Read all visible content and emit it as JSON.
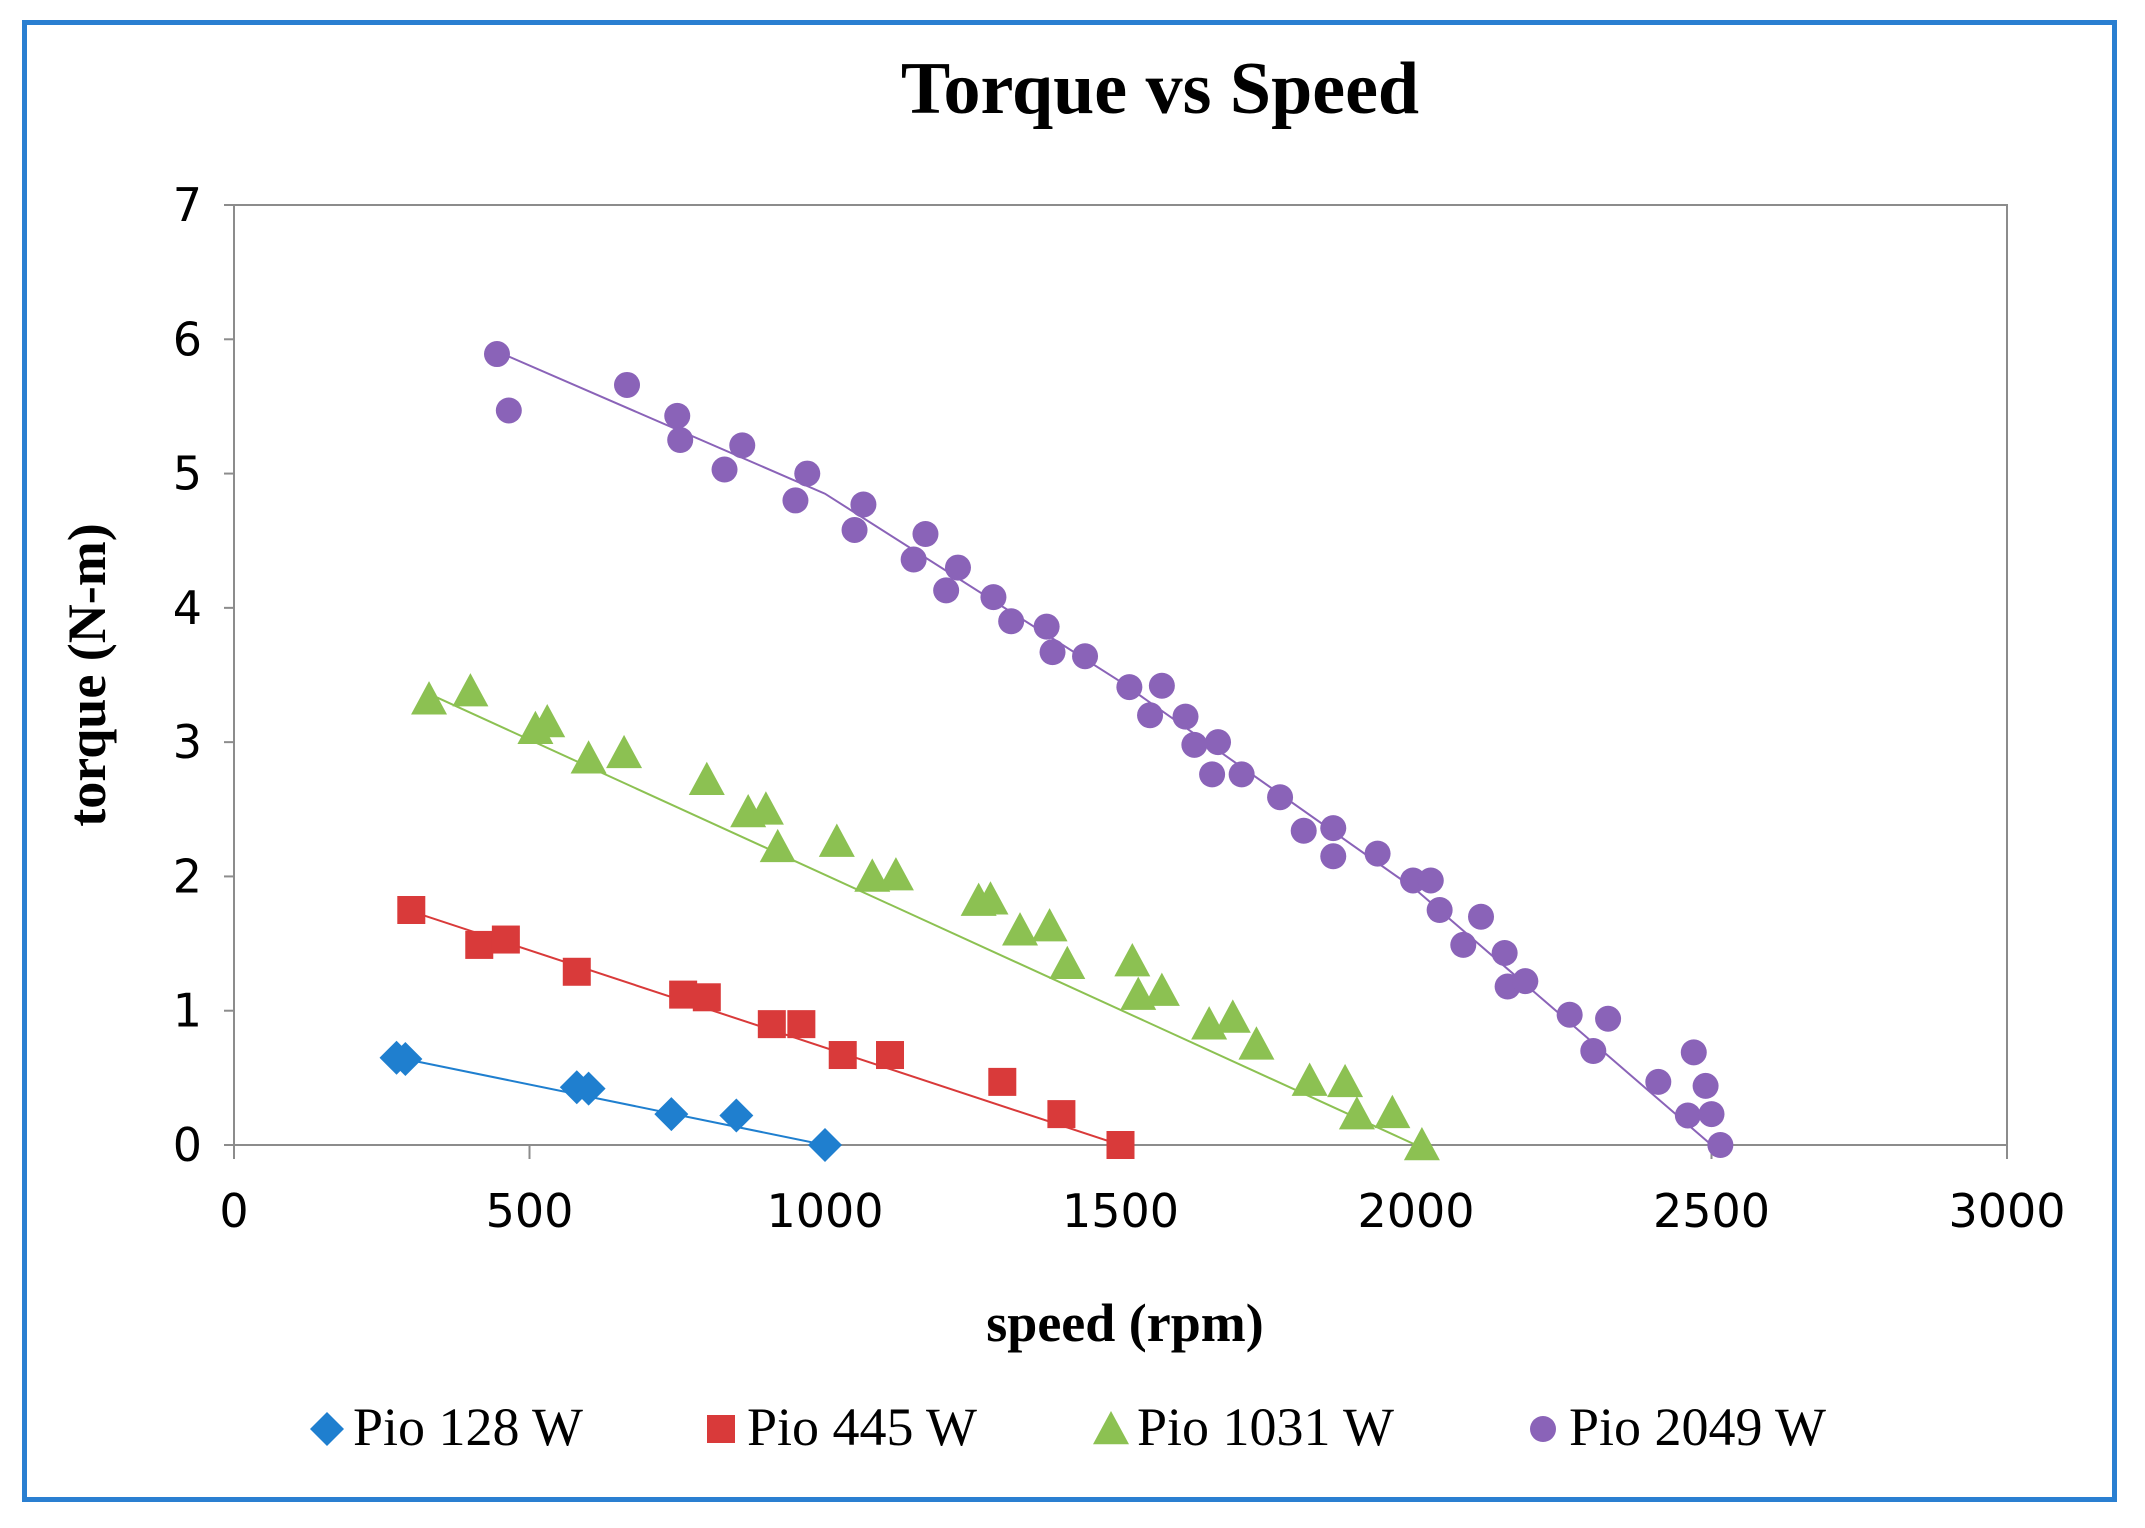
{
  "chart_data": {
    "type": "scatter",
    "title": "Torque vs Speed",
    "xlabel": "speed (rpm)",
    "ylabel": "torque (N-m)",
    "xlim": [
      0,
      3000
    ],
    "ylim": [
      0,
      7
    ],
    "xticks": [
      "0",
      "500",
      "1000",
      "1500",
      "2000",
      "2500",
      "3000"
    ],
    "yticks": [
      "0",
      "1",
      "2",
      "3",
      "4",
      "5",
      "6",
      "7"
    ],
    "grid": false,
    "legend_position": "bottom",
    "series": [
      {
        "name": "Pio 128 W",
        "marker": "diamond",
        "color": "#1f7fcf",
        "trendline": [
          [
            290,
            0.64
          ],
          [
            1000,
            0
          ]
        ],
        "points": [
          [
            275,
            0.65
          ],
          [
            290,
            0.64
          ],
          [
            580,
            0.43
          ],
          [
            600,
            0.42
          ],
          [
            740,
            0.23
          ],
          [
            850,
            0.22
          ],
          [
            1000,
            0.0
          ]
        ]
      },
      {
        "name": "Pio 445 W",
        "marker": "square",
        "color": "#d93a3a",
        "trendline": [
          [
            300,
            1.74
          ],
          [
            1500,
            0
          ]
        ],
        "points": [
          [
            300,
            1.75
          ],
          [
            415,
            1.49
          ],
          [
            460,
            1.53
          ],
          [
            580,
            1.29
          ],
          [
            760,
            1.12
          ],
          [
            800,
            1.1
          ],
          [
            910,
            0.9
          ],
          [
            960,
            0.9
          ],
          [
            1030,
            0.67
          ],
          [
            1110,
            0.67
          ],
          [
            1300,
            0.47
          ],
          [
            1400,
            0.23
          ],
          [
            1500,
            0.0
          ]
        ]
      },
      {
        "name": "Pio 1031 W",
        "marker": "triangle",
        "color": "#8cc152",
        "trendline": [
          [
            330,
            3.36
          ],
          [
            2000,
            0
          ]
        ],
        "points": [
          [
            330,
            3.32
          ],
          [
            400,
            3.38
          ],
          [
            510,
            3.1
          ],
          [
            530,
            3.15
          ],
          [
            600,
            2.88
          ],
          [
            660,
            2.92
          ],
          [
            800,
            2.72
          ],
          [
            870,
            2.48
          ],
          [
            900,
            2.5
          ],
          [
            920,
            2.22
          ],
          [
            1020,
            2.26
          ],
          [
            1080,
            2.0
          ],
          [
            1120,
            2.01
          ],
          [
            1260,
            1.82
          ],
          [
            1280,
            1.83
          ],
          [
            1330,
            1.6
          ],
          [
            1380,
            1.63
          ],
          [
            1410,
            1.35
          ],
          [
            1520,
            1.37
          ],
          [
            1530,
            1.12
          ],
          [
            1570,
            1.15
          ],
          [
            1650,
            0.9
          ],
          [
            1690,
            0.95
          ],
          [
            1730,
            0.75
          ],
          [
            1820,
            0.48
          ],
          [
            1880,
            0.47
          ],
          [
            1900,
            0.23
          ],
          [
            1960,
            0.24
          ],
          [
            2010,
            0.0
          ]
        ]
      },
      {
        "name": "Pio 2049 W",
        "marker": "circle",
        "color": "#8a63b8",
        "trendline": [
          [
            450,
            5.9
          ],
          [
            1000,
            4.85
          ],
          [
            1500,
            3.45
          ],
          [
            2000,
            1.9
          ],
          [
            2500,
            0
          ]
        ],
        "points": [
          [
            445,
            5.89
          ],
          [
            465,
            5.47
          ],
          [
            665,
            5.66
          ],
          [
            750,
            5.43
          ],
          [
            755,
            5.25
          ],
          [
            830,
            5.03
          ],
          [
            860,
            5.21
          ],
          [
            950,
            4.8
          ],
          [
            970,
            5.0
          ],
          [
            1050,
            4.58
          ],
          [
            1065,
            4.77
          ],
          [
            1150,
            4.36
          ],
          [
            1170,
            4.55
          ],
          [
            1205,
            4.13
          ],
          [
            1225,
            4.3
          ],
          [
            1285,
            4.08
          ],
          [
            1315,
            3.9
          ],
          [
            1375,
            3.86
          ],
          [
            1385,
            3.67
          ],
          [
            1440,
            3.64
          ],
          [
            1515,
            3.41
          ],
          [
            1550,
            3.2
          ],
          [
            1570,
            3.42
          ],
          [
            1610,
            3.19
          ],
          [
            1625,
            2.98
          ],
          [
            1655,
            2.76
          ],
          [
            1665,
            3.0
          ],
          [
            1705,
            2.76
          ],
          [
            1770,
            2.59
          ],
          [
            1810,
            2.34
          ],
          [
            1860,
            2.36
          ],
          [
            1860,
            2.15
          ],
          [
            1935,
            2.17
          ],
          [
            1995,
            1.97
          ],
          [
            2025,
            1.97
          ],
          [
            2040,
            1.75
          ],
          [
            2080,
            1.49
          ],
          [
            2110,
            1.7
          ],
          [
            2150,
            1.43
          ],
          [
            2155,
            1.18
          ],
          [
            2185,
            1.22
          ],
          [
            2260,
            0.97
          ],
          [
            2300,
            0.7
          ],
          [
            2325,
            0.94
          ],
          [
            2410,
            0.47
          ],
          [
            2460,
            0.22
          ],
          [
            2470,
            0.69
          ],
          [
            2490,
            0.44
          ],
          [
            2500,
            0.23
          ],
          [
            2515,
            0.0
          ]
        ]
      }
    ]
  }
}
